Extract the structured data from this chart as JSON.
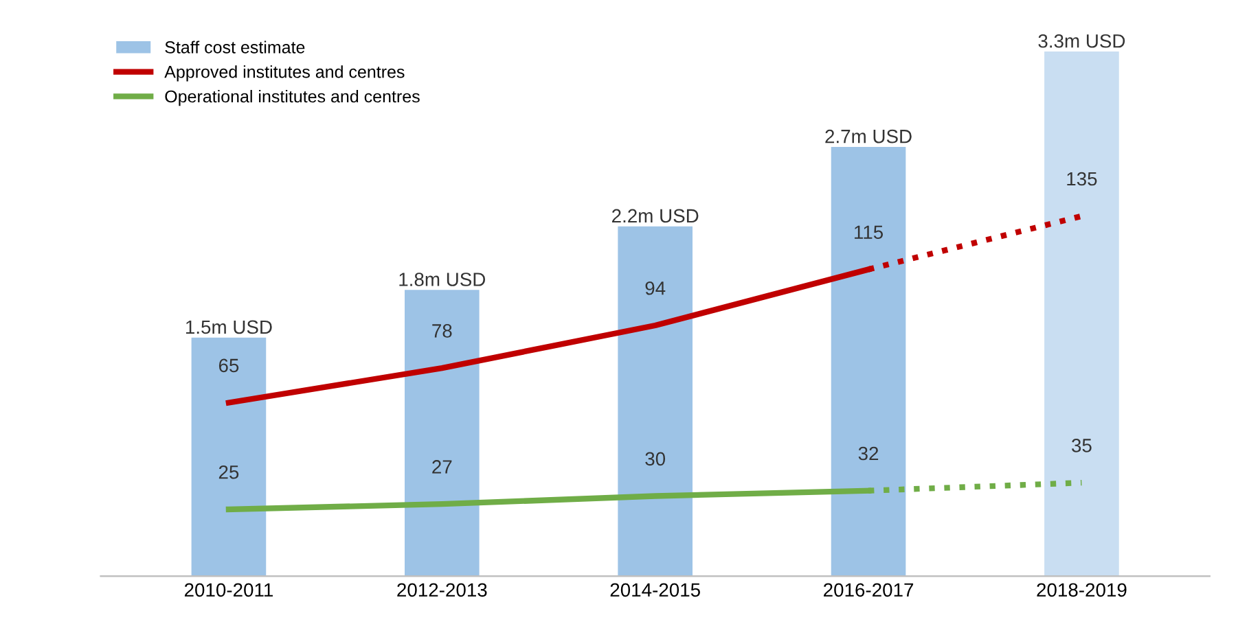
{
  "chart_data": {
    "type": "bar",
    "categories": [
      "2010-2011",
      "2012-2013",
      "2014-2015",
      "2016-2017",
      "2018-2019"
    ],
    "tick_labels": "x",
    "grid": false,
    "legend": "top left",
    "series": [
      {
        "name": "Staff cost estimate",
        "colors": [
          "#9dc3e6",
          "#9dc3e6",
          "#9dc3e6",
          "#9dc3e6",
          "#c9def2"
        ],
        "values": [
          1.5,
          1.8,
          2.2,
          2.7,
          3.3
        ],
        "value_labels": [
          "1.5m USD",
          "1.8m USD",
          "2.2m USD",
          "2.7m USD",
          "3.3m USD"
        ]
      },
      {
        "name": "Approved institutes and centres",
        "type": "line",
        "axis": "y2",
        "color": "#c00000",
        "line_style": "solid",
        "values": [
          65,
          78,
          94,
          115,
          null
        ],
        "value_labels": [
          "65",
          "78",
          "94",
          "115",
          null
        ]
      },
      {
        "type": "line",
        "axis": "y2",
        "color": "#c00000",
        "line_style": "dotted",
        "values": [
          null,
          null,
          null,
          115,
          135
        ],
        "value_labels": [
          null,
          null,
          null,
          null,
          "135"
        ]
      },
      {
        "name": "Operational institutes and centres",
        "type": "line",
        "axis": "y2",
        "color": "#70ad47",
        "line_style": "solid",
        "values": [
          25,
          27,
          30,
          32,
          null
        ],
        "value_labels": [
          "25",
          "27",
          "30",
          "32",
          null
        ]
      },
      {
        "type": "line",
        "axis": "y2",
        "color": "#70ad47",
        "line_style": "dotted",
        "values": [
          null,
          null,
          null,
          32,
          35
        ],
        "value_labels": [
          null,
          null,
          null,
          null,
          "35"
        ]
      }
    ]
  }
}
